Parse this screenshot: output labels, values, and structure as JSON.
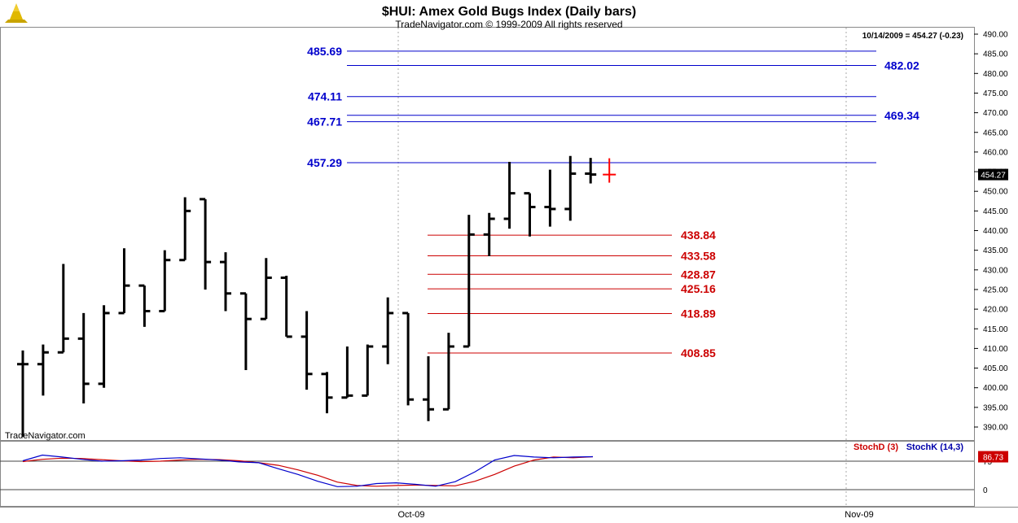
{
  "header": {
    "title": "$HUI:  Amex Gold Bugs Index  (Daily bars)",
    "subtitle": "TradeNavigator.com © 1999-2009 All rights reserved",
    "info": "10/14/2009 = 454.27 (-0.23)",
    "watermark": "TradeNavigator.com"
  },
  "colors": {
    "bars": "#000000",
    "resistance": "#0000cc",
    "support": "#cc0000",
    "stoch_d": "#cc0000",
    "stoch_k": "#0000cc",
    "last_marker": "#ff0000"
  },
  "chart_data": [
    {
      "type": "ohlc",
      "y_range": [
        387,
        492
      ],
      "y_ticks": [
        390,
        395,
        400,
        405,
        410,
        415,
        420,
        425,
        430,
        435,
        440,
        445,
        450,
        455,
        460,
        465,
        470,
        475,
        480,
        485,
        490
      ],
      "x_ticks": [
        "Oct-09",
        "Nov-09"
      ],
      "last_value": 454.27,
      "last_value_label": "454.27",
      "bars": [
        {
          "o": 406,
          "h": 409.5,
          "l": 387.5,
          "c": 406
        },
        {
          "o": 406,
          "h": 411,
          "l": 398,
          "c": 409
        },
        {
          "o": 409,
          "h": 431.5,
          "l": 409,
          "c": 412.5
        },
        {
          "o": 412.5,
          "h": 419,
          "l": 396,
          "c": 401
        },
        {
          "o": 401,
          "h": 421,
          "l": 400,
          "c": 419
        },
        {
          "o": 419,
          "h": 435.5,
          "l": 419,
          "c": 426
        },
        {
          "o": 426,
          "h": 426,
          "l": 415.5,
          "c": 419.5
        },
        {
          "o": 419.5,
          "h": 435,
          "l": 419.5,
          "c": 432.5
        },
        {
          "o": 432.5,
          "h": 448.5,
          "l": 432.5,
          "c": 445
        },
        {
          "o": 448,
          "h": 448,
          "l": 425,
          "c": 432
        },
        {
          "o": 432,
          "h": 434.5,
          "l": 419.5,
          "c": 424
        },
        {
          "o": 424,
          "h": 424,
          "l": 404.5,
          "c": 417.5
        },
        {
          "o": 417.5,
          "h": 433,
          "l": 417.5,
          "c": 428
        },
        {
          "o": 428,
          "h": 428.5,
          "l": 413,
          "c": 413
        },
        {
          "o": 413,
          "h": 419.5,
          "l": 399.5,
          "c": 403.5
        },
        {
          "o": 403.5,
          "h": 404,
          "l": 393.5,
          "c": 397.5
        },
        {
          "o": 397.5,
          "h": 410.5,
          "l": 397.5,
          "c": 398
        },
        {
          "o": 398,
          "h": 411,
          "l": 398,
          "c": 410.5
        },
        {
          "o": 410.5,
          "h": 423,
          "l": 406,
          "c": 419
        },
        {
          "o": 419,
          "h": 419,
          "l": 395.5,
          "c": 397
        },
        {
          "o": 397,
          "h": 408,
          "l": 391.5,
          "c": 394.5
        },
        {
          "o": 394.5,
          "h": 414,
          "l": 394.5,
          "c": 410.5
        },
        {
          "o": 410.5,
          "h": 444,
          "l": 410.5,
          "c": 439
        },
        {
          "o": 439,
          "h": 444.5,
          "l": 433.5,
          "c": 443
        },
        {
          "o": 443,
          "h": 457.5,
          "l": 440.5,
          "c": 449.5
        },
        {
          "o": 449.5,
          "h": 449.5,
          "l": 438.5,
          "c": 446
        },
        {
          "o": 446,
          "h": 455.5,
          "l": 441,
          "c": 445.5
        },
        {
          "o": 445.5,
          "h": 459,
          "l": 442.5,
          "c": 454.5
        },
        {
          "o": 454.5,
          "h": 458.5,
          "l": 452,
          "c": 454.27
        }
      ],
      "levels": [
        {
          "value": 485.69,
          "label": "485.69",
          "kind": "resistance",
          "label_side": "left"
        },
        {
          "value": 482.02,
          "label": "482.02",
          "kind": "resistance",
          "label_side": "right"
        },
        {
          "value": 474.11,
          "label": "474.11",
          "kind": "resistance",
          "label_side": "left"
        },
        {
          "value": 469.34,
          "label": "469.34",
          "kind": "resistance",
          "label_side": "right"
        },
        {
          "value": 467.71,
          "label": "467.71",
          "kind": "resistance",
          "label_side": "left"
        },
        {
          "value": 457.29,
          "label": "457.29",
          "kind": "resistance",
          "label_side": "left"
        },
        {
          "value": 438.84,
          "label": "438.84",
          "kind": "support",
          "label_side": "right"
        },
        {
          "value": 433.58,
          "label": "433.58",
          "kind": "support",
          "label_side": "right"
        },
        {
          "value": 428.87,
          "label": "428.87",
          "kind": "support",
          "label_side": "right"
        },
        {
          "value": 425.16,
          "label": "425.16",
          "kind": "support",
          "label_side": "right"
        },
        {
          "value": 418.89,
          "label": "418.89",
          "kind": "support",
          "label_side": "right"
        },
        {
          "value": 408.85,
          "label": "408.85",
          "kind": "support",
          "label_side": "right"
        }
      ]
    },
    {
      "type": "line",
      "y_range": [
        -10,
        100
      ],
      "y_ticks": [
        0,
        75
      ],
      "legend": [
        "StochD (3)",
        "StochK (14,3)"
      ],
      "last_value": 86.73,
      "last_value_label": "86.73",
      "series": [
        {
          "name": "StochD (3)",
          "values": [
            74,
            80,
            83,
            82,
            79,
            76,
            74,
            75,
            78,
            80,
            79,
            76,
            71,
            64,
            52,
            38,
            20,
            11,
            9,
            11,
            12,
            11,
            10,
            22,
            40,
            62,
            78,
            86,
            84,
            86.73
          ]
        },
        {
          "name": "StochK (14,3)",
          "values": [
            76,
            91,
            86,
            80,
            75,
            76,
            78,
            82,
            84,
            81,
            78,
            73,
            71,
            55,
            40,
            22,
            8,
            9,
            16,
            18,
            14,
            9,
            21,
            47,
            78,
            90,
            86,
            84,
            86,
            86.73
          ]
        }
      ]
    }
  ]
}
